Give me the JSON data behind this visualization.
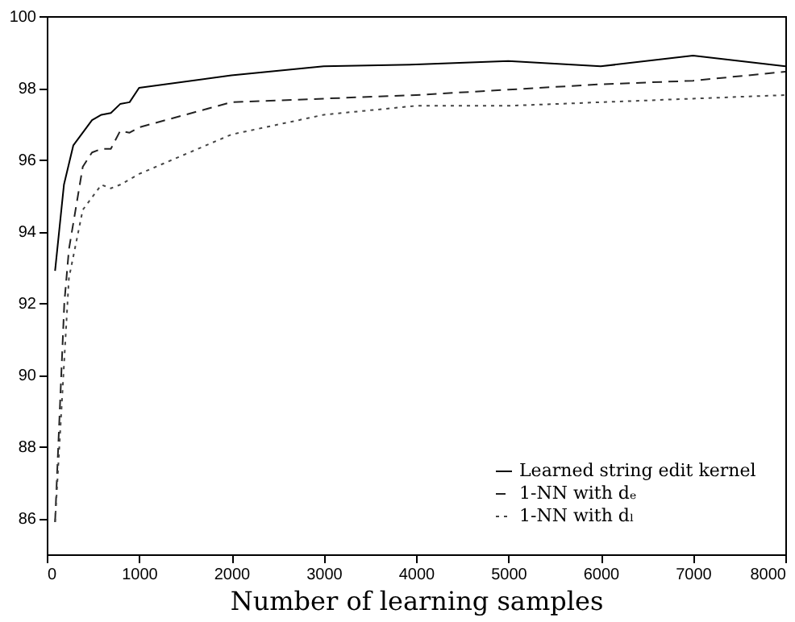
{
  "chart_data": {
    "type": "line",
    "xlabel": "Number of learning samples",
    "xlim": [
      0,
      8000
    ],
    "xticks": [
      0,
      1000,
      2000,
      3000,
      4000,
      5000,
      6000,
      7000,
      8000
    ],
    "ylim": [
      85,
      100
    ],
    "yticks": [
      86,
      88,
      90,
      92,
      94,
      96,
      98,
      100
    ],
    "grid": false,
    "legend": "bottom right",
    "marker": "none",
    "series": [
      {
        "name": "Learned string edit kernel",
        "color": "#000000",
        "line_style": "solid",
        "x": [
          90,
          186,
          288,
          490,
          592,
          694,
          795,
          897,
          1000,
          2000,
          3000,
          4000,
          5000,
          6000,
          7000,
          8000
        ],
        "values": [
          92.9,
          95.3,
          96.4,
          97.1,
          97.25,
          97.3,
          97.55,
          97.6,
          98.0,
          98.35,
          98.6,
          98.65,
          98.75,
          98.6,
          98.9,
          98.6
        ]
      },
      {
        "name": "1-NN with dₑ",
        "color": "#222222",
        "line_style": "dashed",
        "x": [
          90,
          190,
          240,
          390,
          490,
          592,
          694,
          795,
          897,
          1000,
          2000,
          3000,
          4000,
          5000,
          6000,
          7000,
          8000
        ],
        "values": [
          85.9,
          92.0,
          93.5,
          95.8,
          96.2,
          96.3,
          96.3,
          96.8,
          96.75,
          96.9,
          97.6,
          97.7,
          97.8,
          97.95,
          98.1,
          98.2,
          98.45
        ]
      },
      {
        "name": "1-NN with dₗ",
        "color": "#444444",
        "line_style": "dotted",
        "x": [
          90,
          240,
          390,
          592,
          694,
          795,
          1000,
          2000,
          3000,
          4000,
          5000,
          6000,
          7000,
          8000
        ],
        "values": [
          85.9,
          92.7,
          94.6,
          95.3,
          95.2,
          95.3,
          95.6,
          96.7,
          97.25,
          97.5,
          97.5,
          97.6,
          97.7,
          97.8
        ]
      }
    ]
  }
}
